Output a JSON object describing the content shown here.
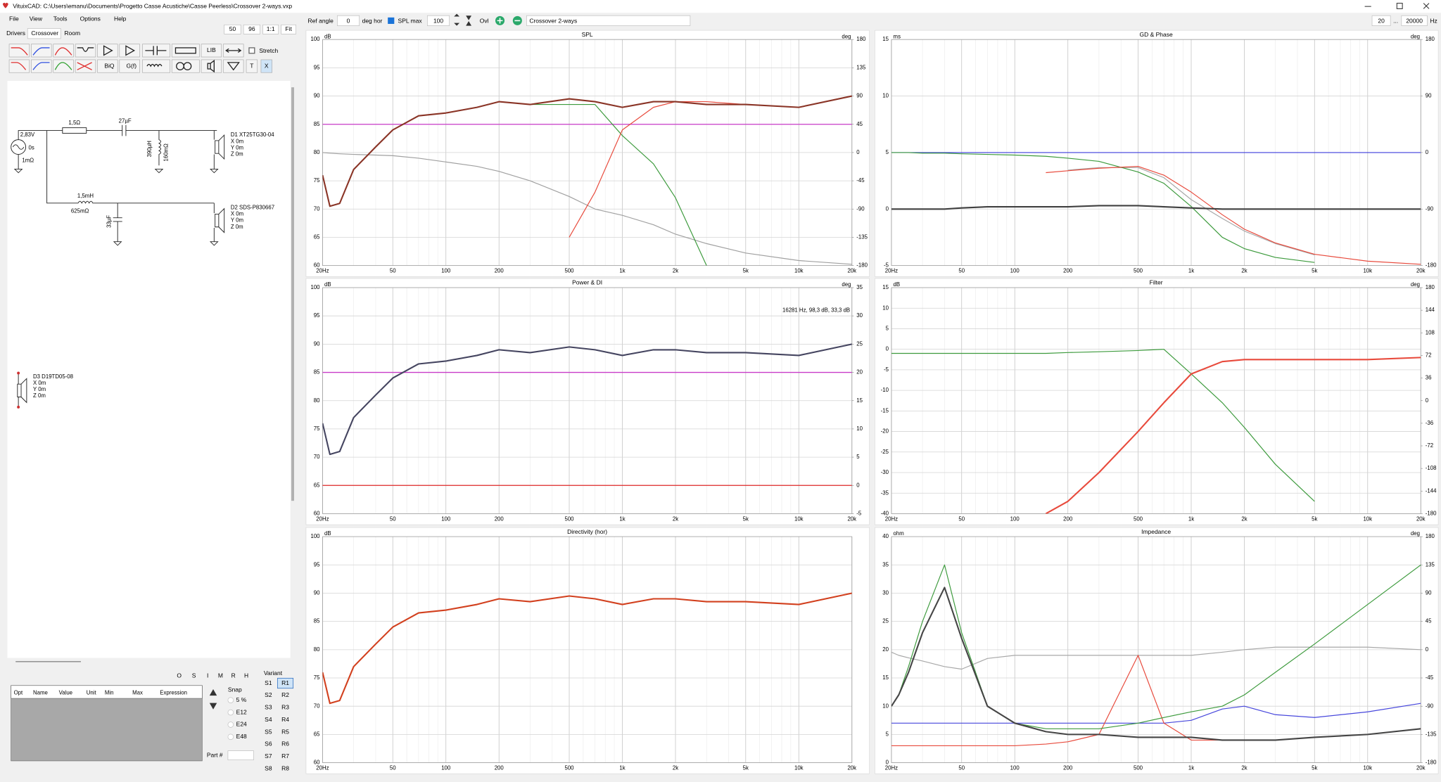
{
  "window_title": "VituixCAD: C:\\Users\\emanu\\Documents\\Progetto Casse Acustiche\\Casse Peerless\\Crossover 2-ways.vxp",
  "menu": [
    "File",
    "View",
    "Tools",
    "Options",
    "Help"
  ],
  "zoom": [
    "50",
    "96",
    "1:1",
    "Fit"
  ],
  "tabs": [
    "Drivers",
    "Crossover",
    "Room"
  ],
  "toolbar": {
    "ref_angle_label": "Ref angle",
    "ref_angle": "0",
    "ref_angle_unit": "deg hor",
    "spl_max_label": "SPL max",
    "spl_max": "100",
    "ovl": "Ovl",
    "name": "Crossover 2-ways",
    "f_min": "20",
    "f_sep": "...",
    "f_max": "20000",
    "f_unit": "Hz"
  },
  "component_buttons": [
    "LIB",
    "BiQ",
    "G(f)",
    "T",
    "X"
  ],
  "stretch": "Stretch",
  "schematic": {
    "source": [
      "2,83V",
      "0s",
      "1mΩ"
    ],
    "tweeter_branch": [
      "1,5Ω",
      "27µF",
      "390µH",
      "160mΩ"
    ],
    "woofer_branch": [
      "1,5mH",
      "625mΩ",
      "33µF"
    ],
    "drivers": [
      {
        "name": "D1 XT25TG30-04",
        "coords": [
          "X 0m",
          "Y 0m",
          "Z 0m"
        ]
      },
      {
        "name": "D2 SDS-P830667",
        "coords": [
          "X 0m",
          "Y 0m",
          "Z 0m"
        ]
      },
      {
        "name": "D3 D19TD05-08",
        "coords": [
          "X 0m",
          "Y 0m",
          "Z 0m"
        ]
      }
    ]
  },
  "optimizer": {
    "buttons": [
      "O",
      "S",
      "I",
      "M",
      "R",
      "H"
    ],
    "columns": [
      "Opt",
      "Name",
      "Value",
      "Unit",
      "Min",
      "Max",
      "Expression"
    ],
    "snap": "Snap",
    "snap_options": [
      "5 %",
      "E12",
      "E24",
      "E48"
    ],
    "variant": "Variant",
    "s": [
      "S1",
      "S2",
      "S3",
      "S4",
      "S5",
      "S6",
      "S7",
      "S8"
    ],
    "r": [
      "R1",
      "R2",
      "R3",
      "R4",
      "R5",
      "R6",
      "R7",
      "R8"
    ],
    "part": "Part #"
  },
  "chart_data": [
    {
      "type": "line",
      "title": "SPL",
      "y_unit": "dB",
      "y2_unit": "deg",
      "log_x": true,
      "grid": true,
      "x": [
        20,
        22,
        25,
        30,
        40,
        50,
        70,
        100,
        150,
        200,
        300,
        500,
        700,
        1000,
        1500,
        2000,
        3000,
        5000,
        10000,
        20000
      ],
      "xlim": [
        20,
        20000
      ],
      "xticks": [
        {
          "value": 20,
          "label": "20Hz"
        },
        50,
        100,
        200,
        500,
        {
          "value": 1000,
          "label": "1k"
        },
        {
          "value": 2000,
          "label": "2k"
        },
        {
          "value": 5000,
          "label": "5k"
        },
        {
          "value": 10000,
          "label": "10k"
        },
        {
          "value": 20000,
          "label": "20k"
        }
      ],
      "xminor": [
        30,
        40,
        60,
        70,
        80,
        90,
        300,
        400,
        600,
        700,
        800,
        900,
        3000,
        4000,
        6000,
        7000,
        8000,
        9000
      ],
      "ylim": [
        60,
        100
      ],
      "yticks": [
        60,
        65,
        70,
        75,
        80,
        85,
        90,
        95,
        100
      ],
      "y2lim": [
        -180,
        180
      ],
      "y2ticks": [
        -180,
        -135,
        -90,
        -45,
        0,
        45,
        90,
        135,
        180
      ],
      "hlines": [
        {
          "value": 85,
          "color": "#c83cc8"
        }
      ],
      "series": [
        {
          "color": "#a0a0a0",
          "axis": "y2",
          "values": [
            0,
            -1,
            -2,
            -3,
            -4,
            -5,
            -9,
            -15,
            -22,
            -30,
            -45,
            -70,
            -90,
            -100,
            -115,
            -130,
            -145,
            -160,
            -172,
            -178
          ]
        },
        {
          "color": "#3c9a3c",
          "values": [
            76,
            70.5,
            71,
            77,
            81,
            84,
            86.5,
            87,
            88,
            89,
            88.5,
            88.5,
            88.5,
            83,
            78,
            72,
            60,
            null,
            null,
            null
          ]
        },
        {
          "color": "#e84a3c",
          "values": [
            null,
            null,
            null,
            null,
            null,
            null,
            null,
            null,
            null,
            null,
            null,
            65,
            73,
            84,
            88,
            89,
            89,
            88.5,
            88,
            90
          ]
        },
        {
          "color": "#8a3426",
          "values": [
            76,
            70.5,
            71,
            77,
            81,
            84,
            86.5,
            87,
            88,
            89,
            88.5,
            89.5,
            89,
            88,
            89,
            89,
            88.5,
            88.5,
            88,
            90
          ]
        }
      ]
    },
    {
      "type": "line",
      "title": "Power & DI",
      "y_unit": "dB",
      "y2_unit": "deg",
      "log_x": true,
      "grid": true,
      "annotation": "16281 Hz, 98,3 dB, 33,3 dB",
      "x": [
        20,
        22,
        25,
        30,
        40,
        50,
        70,
        100,
        150,
        200,
        300,
        500,
        700,
        1000,
        1500,
        2000,
        3000,
        5000,
        10000,
        20000
      ],
      "xlim": [
        20,
        20000
      ],
      "xticks": [
        {
          "value": 20,
          "label": "20Hz"
        },
        50,
        100,
        200,
        500,
        {
          "value": 1000,
          "label": "1k"
        },
        {
          "value": 2000,
          "label": "2k"
        },
        {
          "value": 5000,
          "label": "5k"
        },
        {
          "value": 10000,
          "label": "10k"
        },
        {
          "value": 20000,
          "label": "20k"
        }
      ],
      "xminor": [
        30,
        40,
        60,
        70,
        80,
        90,
        300,
        400,
        600,
        700,
        800,
        900,
        3000,
        4000,
        6000,
        7000,
        8000,
        9000
      ],
      "ylim": [
        60,
        100
      ],
      "yticks": [
        60,
        65,
        70,
        75,
        80,
        85,
        90,
        95,
        100
      ],
      "y2lim": [
        -5,
        35
      ],
      "y2ticks": [
        -5,
        0,
        5,
        10,
        15,
        20,
        25,
        30,
        35
      ],
      "hlines": [
        {
          "value": 85,
          "color": "#c83cc8"
        }
      ],
      "series": [
        {
          "color": "#e02828",
          "axis": "y2",
          "values": [
            0,
            0,
            0,
            0,
            0,
            0,
            0,
            0,
            0,
            0,
            0,
            0,
            0,
            0,
            0,
            0,
            0,
            0,
            0,
            0
          ]
        },
        {
          "color": "#454560",
          "values": [
            76,
            70.5,
            71,
            77,
            81,
            84,
            86.5,
            87,
            88,
            89,
            88.5,
            89.5,
            89,
            88,
            89,
            89,
            88.5,
            88.5,
            88,
            90
          ]
        }
      ]
    },
    {
      "type": "line",
      "title": "Directivity (hor)",
      "y_unit": "dB",
      "log_x": true,
      "grid": true,
      "x": [
        20,
        22,
        25,
        30,
        40,
        50,
        70,
        100,
        150,
        200,
        300,
        500,
        700,
        1000,
        1500,
        2000,
        3000,
        5000,
        10000,
        20000
      ],
      "xlim": [
        20,
        20000
      ],
      "xticks": [
        {
          "value": 20,
          "label": "20Hz"
        },
        50,
        100,
        200,
        500,
        {
          "value": 1000,
          "label": "1k"
        },
        {
          "value": 2000,
          "label": "2k"
        },
        {
          "value": 5000,
          "label": "5k"
        },
        {
          "value": 10000,
          "label": "10k"
        },
        {
          "value": 20000,
          "label": "20k"
        }
      ],
      "xminor": [
        30,
        40,
        60,
        70,
        80,
        90,
        300,
        400,
        600,
        700,
        800,
        900,
        3000,
        4000,
        6000,
        7000,
        8000,
        9000
      ],
      "ylim": [
        60,
        100
      ],
      "yticks": [
        60,
        65,
        70,
        75,
        80,
        85,
        90,
        95,
        100
      ],
      "series": [
        {
          "color": "#d2401e",
          "values": [
            76,
            70.5,
            71,
            77,
            81,
            84,
            86.5,
            87,
            88,
            89,
            88.5,
            89.5,
            89,
            88,
            89,
            89,
            88.5,
            88.5,
            88,
            90
          ]
        }
      ]
    },
    {
      "type": "line",
      "title": "GD & Phase",
      "y_unit": "ms",
      "y2_unit": "deg",
      "log_x": true,
      "grid": true,
      "x": [
        20,
        22,
        25,
        30,
        40,
        50,
        70,
        100,
        150,
        200,
        300,
        500,
        700,
        1000,
        1500,
        2000,
        3000,
        5000,
        10000,
        20000
      ],
      "xlim": [
        20,
        20000
      ],
      "xticks": [
        {
          "value": 20,
          "label": "20Hz"
        },
        50,
        100,
        200,
        500,
        {
          "value": 1000,
          "label": "1k"
        },
        {
          "value": 2000,
          "label": "2k"
        },
        {
          "value": 5000,
          "label": "5k"
        },
        {
          "value": 10000,
          "label": "10k"
        },
        {
          "value": 20000,
          "label": "20k"
        }
      ],
      "xminor": [
        30,
        40,
        60,
        70,
        80,
        90,
        300,
        400,
        600,
        700,
        800,
        900,
        3000,
        4000,
        6000,
        7000,
        8000,
        9000
      ],
      "ylim": [
        -5,
        15
      ],
      "yticks": [
        -5,
        0,
        5,
        10,
        15
      ],
      "y2lim": [
        -180,
        180
      ],
      "y2ticks": [
        -180,
        -90,
        0,
        90,
        180
      ],
      "series": [
        {
          "color": "#3c3cdc",
          "axis": "y2",
          "values": [
            0,
            0,
            0,
            0,
            0,
            0,
            0,
            0,
            0,
            0,
            0,
            0,
            0,
            0,
            0,
            0,
            0,
            0,
            0,
            0
          ]
        },
        {
          "color": "#a8a8a8",
          "axis": "y2",
          "values": [
            null,
            null,
            null,
            null,
            null,
            null,
            null,
            null,
            null,
            -28,
            -24,
            -24,
            -40,
            -75,
            -105,
            -125,
            -145,
            -163,
            null,
            null
          ]
        },
        {
          "color": "#3c9a3c",
          "axis": "y2",
          "values": [
            0,
            0,
            0,
            -1,
            -1,
            -2,
            -3,
            -4,
            -6,
            -9,
            -14,
            -31,
            -49,
            -86,
            -135,
            -153,
            -167,
            -175,
            null,
            null
          ]
        },
        {
          "color": "#e84a3c",
          "axis": "y2",
          "values": [
            null,
            null,
            null,
            null,
            null,
            null,
            null,
            null,
            -32,
            -29,
            -25,
            -22,
            -36,
            -63,
            -99,
            -122,
            -144,
            -162,
            -173,
            -178
          ]
        },
        {
          "color": "#404040",
          "values": [
            0,
            0,
            0,
            0,
            0,
            0.1,
            0.2,
            0.2,
            0.2,
            0.2,
            0.3,
            0.3,
            0.2,
            0.1,
            0,
            0,
            0,
            0,
            0,
            0
          ]
        }
      ]
    },
    {
      "type": "line",
      "title": "Filter",
      "y_unit": "dB",
      "y2_unit": "deg",
      "log_x": true,
      "grid": true,
      "x": [
        20,
        22,
        25,
        30,
        40,
        50,
        70,
        100,
        150,
        200,
        300,
        500,
        700,
        1000,
        1500,
        2000,
        3000,
        5000,
        10000,
        20000
      ],
      "xlim": [
        20,
        20000
      ],
      "xticks": [
        {
          "value": 20,
          "label": "20Hz"
        },
        50,
        100,
        200,
        500,
        {
          "value": 1000,
          "label": "1k"
        },
        {
          "value": 2000,
          "label": "2k"
        },
        {
          "value": 5000,
          "label": "5k"
        },
        {
          "value": 10000,
          "label": "10k"
        },
        {
          "value": 20000,
          "label": "20k"
        }
      ],
      "xminor": [
        30,
        40,
        60,
        70,
        80,
        90,
        300,
        400,
        600,
        700,
        800,
        900,
        3000,
        4000,
        6000,
        7000,
        8000,
        9000
      ],
      "ylim": [
        -40,
        15
      ],
      "yticks": [
        -40,
        -35,
        -30,
        -25,
        -20,
        -15,
        -10,
        -5,
        0,
        5,
        10,
        15
      ],
      "y2lim": [
        -180,
        180
      ],
      "y2ticks": [
        -180,
        -144,
        -108,
        -72,
        -36,
        0,
        36,
        72,
        108,
        144,
        180
      ],
      "series": [
        {
          "color": "#3c9a3c",
          "values": [
            -1,
            -1,
            -1,
            -1,
            -1,
            -1,
            -1,
            -1,
            -1,
            -0.8,
            -0.6,
            -0.3,
            0,
            -6,
            -13,
            -19,
            -28,
            -37,
            null,
            null
          ]
        },
        {
          "color": "#e84a3c",
          "values": [
            null,
            null,
            null,
            null,
            null,
            null,
            null,
            null,
            -40,
            -37,
            -30,
            -20,
            -13,
            -6,
            -3,
            -2.5,
            -2.5,
            -2.5,
            -2.5,
            -2
          ]
        }
      ]
    },
    {
      "type": "line",
      "title": "Impedance",
      "y_unit": "ohm",
      "y2_unit": "deg",
      "log_x": true,
      "grid": true,
      "x": [
        20,
        22,
        25,
        30,
        40,
        50,
        70,
        100,
        150,
        200,
        300,
        500,
        700,
        1000,
        1500,
        2000,
        3000,
        5000,
        10000,
        20000
      ],
      "xlim": [
        20,
        20000
      ],
      "xticks": [
        {
          "value": 20,
          "label": "20Hz"
        },
        50,
        100,
        200,
        500,
        {
          "value": 1000,
          "label": "1k"
        },
        {
          "value": 2000,
          "label": "2k"
        },
        {
          "value": 5000,
          "label": "5k"
        },
        {
          "value": 10000,
          "label": "10k"
        },
        {
          "value": 20000,
          "label": "20k"
        }
      ],
      "xminor": [
        30,
        40,
        60,
        70,
        80,
        90,
        300,
        400,
        600,
        700,
        800,
        900,
        3000,
        4000,
        6000,
        7000,
        8000,
        9000
      ],
      "ylim": [
        0,
        40
      ],
      "yticks": [
        0,
        5,
        10,
        15,
        20,
        25,
        30,
        35,
        40
      ],
      "y2lim": [
        -180,
        180
      ],
      "y2ticks": [
        -180,
        -135,
        -90,
        -45,
        0,
        45,
        90,
        135,
        180
      ],
      "series": [
        {
          "color": "#a8a8a8",
          "axis": "y2",
          "values": [
            -4,
            -9,
            -13,
            -18,
            -27,
            -31,
            -14,
            -9,
            -9,
            -9,
            -9,
            -9,
            -9,
            -9,
            -4,
            0,
            4,
            4,
            4,
            0
          ]
        },
        {
          "color": "#4646dc",
          "values": [
            7,
            7,
            7,
            7,
            7,
            7,
            7,
            7,
            7,
            7,
            7,
            7,
            7,
            7.5,
            9.5,
            10,
            8.5,
            8,
            9,
            10.5
          ]
        },
        {
          "color": "#e84a3c",
          "values": [
            3,
            3,
            3,
            3,
            3,
            3,
            3,
            3,
            3.3,
            3.7,
            5,
            19,
            7,
            4,
            4,
            4,
            4,
            4.5,
            5,
            6
          ]
        },
        {
          "color": "#3c9a3c",
          "values": [
            10,
            12,
            17,
            25,
            35,
            23,
            10,
            7,
            6,
            6,
            6,
            7,
            8,
            9,
            10,
            12,
            16,
            21,
            28,
            35
          ]
        },
        {
          "color": "#454545",
          "values": [
            10,
            12,
            16,
            23,
            31,
            22,
            10,
            7,
            5.5,
            5,
            5,
            4.5,
            4.5,
            4.5,
            4,
            4,
            4,
            4.5,
            5,
            6
          ]
        }
      ]
    }
  ]
}
